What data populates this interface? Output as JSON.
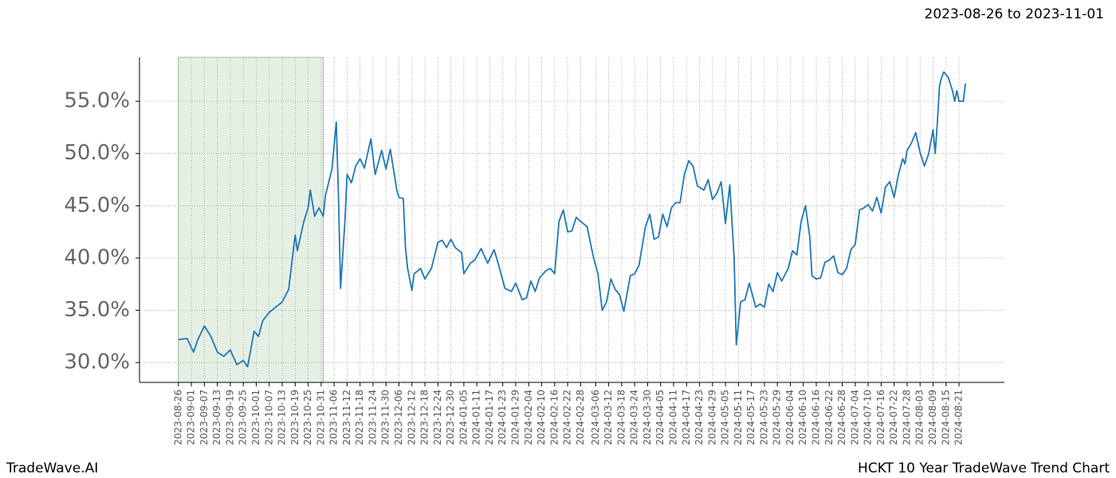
{
  "chart_data": {
    "type": "line",
    "title": "HCKT 10 Year TradeWave Trend Chart",
    "subtitle": "2023-08-26 to 2023-11-01",
    "brand": "TradeWave.AI",
    "color": "#1f77b4",
    "highlight": {
      "start": "2023-08-26",
      "end": "2023-11-01",
      "color": "#e5f0e5"
    },
    "grid": true,
    "xlim": [
      "2023-08-08",
      "2024-09-11"
    ],
    "ylim": [
      28.1,
      59.2
    ],
    "yticks": [
      {
        "value": 30,
        "label": "30.0%"
      },
      {
        "value": 35,
        "label": "35.0%"
      },
      {
        "value": 40,
        "label": "40.0%"
      },
      {
        "value": 45,
        "label": "45.0%"
      },
      {
        "value": 50,
        "label": "50.0%"
      },
      {
        "value": 55,
        "label": "55.0%"
      }
    ],
    "xticks": [
      "2023-08-26",
      "2023-09-01",
      "2023-09-07",
      "2023-09-13",
      "2023-09-19",
      "2023-09-25",
      "2023-10-01",
      "2023-10-07",
      "2023-10-13",
      "2023-10-19",
      "2023-10-25",
      "2023-10-31",
      "2023-11-06",
      "2023-11-12",
      "2023-11-18",
      "2023-11-24",
      "2023-11-30",
      "2023-12-06",
      "2023-12-12",
      "2023-12-18",
      "2023-12-24",
      "2023-12-30",
      "2024-01-05",
      "2024-01-11",
      "2024-01-17",
      "2024-01-23",
      "2024-01-29",
      "2024-02-04",
      "2024-02-10",
      "2024-02-16",
      "2024-02-22",
      "2024-02-28",
      "2024-03-06",
      "2024-03-12",
      "2024-03-18",
      "2024-03-24",
      "2024-03-30",
      "2024-04-05",
      "2024-04-11",
      "2024-04-17",
      "2024-04-23",
      "2024-04-29",
      "2024-05-05",
      "2024-05-11",
      "2024-05-17",
      "2024-05-23",
      "2024-05-29",
      "2024-06-04",
      "2024-06-10",
      "2024-06-16",
      "2024-06-22",
      "2024-06-28",
      "2024-07-04",
      "2024-07-10",
      "2024-07-16",
      "2024-07-22",
      "2024-07-28",
      "2024-08-03",
      "2024-08-09",
      "2024-08-15",
      "2024-08-21"
    ],
    "x": [
      "2023-08-26",
      "2023-08-30",
      "2023-09-02",
      "2023-09-04",
      "2023-09-07",
      "2023-09-10",
      "2023-09-13",
      "2023-09-16",
      "2023-09-19",
      "2023-09-22",
      "2023-09-25",
      "2023-09-27",
      "2023-09-30",
      "2023-10-02",
      "2023-10-04",
      "2023-10-07",
      "2023-10-10",
      "2023-10-13",
      "2023-10-16",
      "2023-10-18",
      "2023-10-19",
      "2023-10-20",
      "2023-10-23",
      "2023-10-25",
      "2023-10-26",
      "2023-10-28",
      "2023-10-30",
      "2023-11-01",
      "2023-11-02",
      "2023-11-05",
      "2023-11-07",
      "2023-11-08",
      "2023-11-09",
      "2023-11-11",
      "2023-11-12",
      "2023-11-14",
      "2023-11-16",
      "2023-11-18",
      "2023-11-20",
      "2023-11-23",
      "2023-11-25",
      "2023-11-28",
      "2023-11-30",
      "2023-12-02",
      "2023-12-05",
      "2023-12-06",
      "2023-12-08",
      "2023-12-09",
      "2023-12-10",
      "2023-12-12",
      "2023-12-13",
      "2023-12-16",
      "2023-12-18",
      "2023-12-21",
      "2023-12-24",
      "2023-12-26",
      "2023-12-28",
      "2023-12-30",
      "2024-01-01",
      "2024-01-04",
      "2024-01-05",
      "2024-01-08",
      "2024-01-10",
      "2024-01-13",
      "2024-01-16",
      "2024-01-19",
      "2024-01-21",
      "2024-01-24",
      "2024-01-27",
      "2024-01-29",
      "2024-02-01",
      "2024-02-03",
      "2024-02-05",
      "2024-02-07",
      "2024-02-09",
      "2024-02-12",
      "2024-02-14",
      "2024-02-16",
      "2024-02-18",
      "2024-02-20",
      "2024-02-22",
      "2024-02-24",
      "2024-02-26",
      "2024-02-28",
      "2024-03-02",
      "2024-03-05",
      "2024-03-07",
      "2024-03-09",
      "2024-03-11",
      "2024-03-13",
      "2024-03-15",
      "2024-03-17",
      "2024-03-19",
      "2024-03-22",
      "2024-03-24",
      "2024-03-26",
      "2024-03-29",
      "2024-03-31",
      "2024-04-02",
      "2024-04-04",
      "2024-04-06",
      "2024-04-08",
      "2024-04-10",
      "2024-04-12",
      "2024-04-14",
      "2024-04-16",
      "2024-04-18",
      "2024-04-20",
      "2024-04-22",
      "2024-04-25",
      "2024-04-27",
      "2024-04-29",
      "2024-05-01",
      "2024-05-03",
      "2024-05-05",
      "2024-05-07",
      "2024-05-09",
      "2024-05-10",
      "2024-05-12",
      "2024-05-14",
      "2024-05-16",
      "2024-05-19",
      "2024-05-21",
      "2024-05-23",
      "2024-05-25",
      "2024-05-27",
      "2024-05-29",
      "2024-05-31",
      "2024-06-03",
      "2024-06-05",
      "2024-06-07",
      "2024-06-09",
      "2024-06-11",
      "2024-06-13",
      "2024-06-14",
      "2024-06-16",
      "2024-06-18",
      "2024-06-20",
      "2024-06-22",
      "2024-06-24",
      "2024-06-26",
      "2024-06-28",
      "2024-06-30",
      "2024-07-02",
      "2024-07-04",
      "2024-07-06",
      "2024-07-08",
      "2024-07-10",
      "2024-07-12",
      "2024-07-14",
      "2024-07-16",
      "2024-07-18",
      "2024-07-20",
      "2024-07-22",
      "2024-07-24",
      "2024-07-26",
      "2024-07-27",
      "2024-07-28",
      "2024-07-30",
      "2024-08-01",
      "2024-08-03",
      "2024-08-05",
      "2024-08-07",
      "2024-08-09",
      "2024-08-10",
      "2024-08-11",
      "2024-08-12",
      "2024-08-13",
      "2024-08-14",
      "2024-08-16",
      "2024-08-18",
      "2024-08-19",
      "2024-08-20",
      "2024-08-21",
      "2024-08-23",
      "2024-08-24"
    ],
    "values": [
      32.2,
      32.3,
      31.0,
      32.2,
      33.5,
      32.5,
      31.0,
      30.6,
      31.2,
      29.8,
      30.2,
      29.6,
      33.0,
      32.5,
      34.0,
      34.8,
      35.3,
      35.8,
      37.0,
      40.5,
      42.2,
      40.7,
      43.5,
      44.8,
      46.5,
      44.0,
      44.8,
      44.0,
      46.0,
      48.5,
      53.0,
      46.0,
      37.1,
      43.5,
      48.0,
      47.2,
      48.8,
      49.5,
      48.6,
      51.4,
      48.0,
      50.3,
      48.5,
      50.4,
      46.5,
      45.8,
      45.7,
      41.0,
      39.0,
      36.9,
      38.5,
      39.0,
      38.0,
      39.0,
      41.5,
      41.7,
      41.0,
      41.8,
      41.0,
      40.5,
      38.5,
      39.5,
      39.8,
      40.9,
      39.5,
      40.8,
      39.4,
      37.1,
      36.8,
      37.6,
      36.0,
      36.2,
      37.8,
      36.8,
      38.1,
      38.8,
      39.0,
      38.5,
      43.5,
      44.6,
      42.5,
      42.6,
      43.9,
      43.5,
      43.0,
      40.0,
      38.5,
      35.0,
      35.8,
      38.0,
      37.0,
      36.5,
      34.9,
      38.3,
      38.5,
      39.3,
      43.0,
      44.2,
      41.8,
      42.0,
      44.2,
      43.0,
      44.8,
      45.3,
      45.3,
      48.0,
      49.3,
      48.8,
      46.9,
      46.5,
      47.5,
      45.6,
      46.2,
      47.3,
      43.3,
      47.0,
      40.0,
      31.7,
      35.8,
      36.0,
      37.6,
      35.3,
      35.6,
      35.3,
      37.5,
      36.8,
      38.6,
      37.8,
      39.0,
      40.7,
      40.3,
      43.5,
      45.0,
      42.0,
      38.3,
      38.0,
      38.1,
      39.6,
      39.8,
      40.2,
      38.6,
      38.4,
      39.0,
      40.8,
      41.3,
      44.6,
      44.8,
      45.1,
      44.5,
      45.8,
      44.3,
      46.8,
      47.3,
      45.8,
      48.0,
      49.5,
      49.0,
      50.3,
      51.0,
      52.0,
      50.1,
      48.8,
      50.0,
      52.3,
      50.0,
      53.0,
      56.5,
      57.3,
      57.8,
      57.3,
      56.0,
      55.0,
      56.0,
      55.0,
      55.0,
      56.7
    ]
  }
}
